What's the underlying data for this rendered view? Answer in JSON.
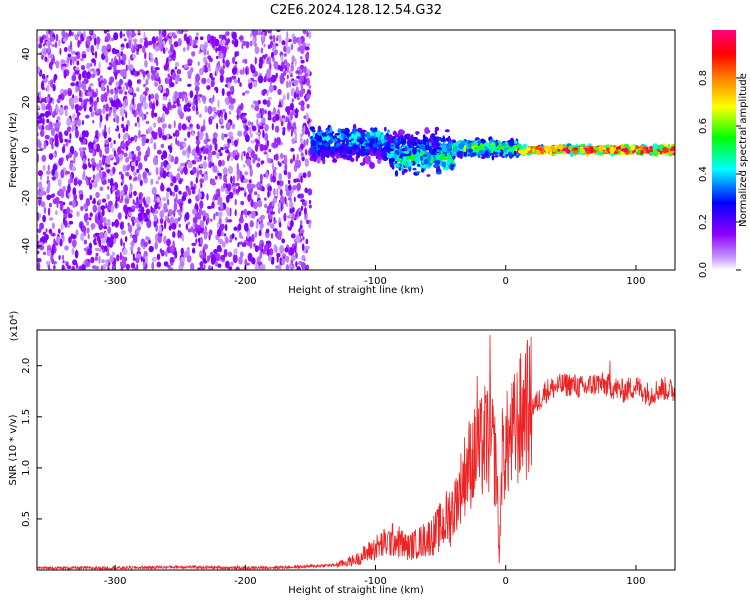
{
  "title": "C2E6.2024.128.12.54.G32",
  "chart_data": [
    {
      "type": "heatmap",
      "xlabel": "Height of straight line (km)",
      "ylabel": "Frequency (Hz)",
      "xlim": [
        -360,
        130
      ],
      "ylim": [
        -50,
        50
      ],
      "x_ticks": [
        -300,
        -200,
        -100,
        0,
        100
      ],
      "y_ticks": [
        -40,
        -20,
        0,
        20,
        40
      ],
      "colorbar": {
        "label": "Normalized spectral amplitude",
        "range": [
          0,
          1
        ],
        "ticks": [
          "0.0",
          "0.2",
          "0.4",
          "0.6",
          "0.8"
        ],
        "colormap": [
          "#ffffff",
          "#8f00ff",
          "#0000ff",
          "#00ffff",
          "#00ff00",
          "#ffff00",
          "#ff8000",
          "#ff0000",
          "#ff007f"
        ]
      },
      "regions": [
        {
          "x": [
            -360,
            -150
          ],
          "freq_spread": [
            -50,
            50
          ],
          "amplitude": 0.1,
          "description": "broadband noise"
        },
        {
          "x": [
            -150,
            -90
          ],
          "freq_center": 5,
          "freq_spread": [
            -8,
            12
          ],
          "amplitude": 0.35
        },
        {
          "x": [
            -90,
            -40
          ],
          "freq_center": -3,
          "freq_spread": [
            -12,
            10
          ],
          "amplitude": 0.4
        },
        {
          "x": [
            -40,
            10
          ],
          "freq_center": 1,
          "freq_spread": [
            -4,
            5
          ],
          "amplitude": 0.5
        },
        {
          "x": [
            10,
            130
          ],
          "freq_center": 0,
          "freq_spread": [
            -2,
            2
          ],
          "amplitude": 0.9
        }
      ]
    },
    {
      "type": "line",
      "xlabel": "Height of straight line (km)",
      "ylabel": "SNR (10 * v/v)",
      "y_multiplier": "(x10⁴)",
      "xlim": [
        -360,
        130
      ],
      "ylim": [
        0,
        2.35
      ],
      "x_ticks": [
        -300,
        -200,
        -100,
        0,
        100
      ],
      "y_ticks": [
        "0.5",
        "1.0",
        "1.5",
        "2.0"
      ],
      "color": "#ee2222",
      "series": [
        {
          "x": [
            -360,
            -300,
            -250,
            -200,
            -160,
            -130,
            -115,
            -105,
            -95,
            -85,
            -75,
            -65,
            -55,
            -48,
            -40,
            -35,
            -30,
            -25,
            -20,
            -15,
            -10,
            -7,
            -5,
            -3,
            0,
            5,
            10,
            15,
            20,
            25,
            30,
            40,
            50,
            60,
            70,
            80,
            90,
            100,
            110,
            120,
            130
          ],
          "y": [
            0.02,
            0.02,
            0.03,
            0.02,
            0.03,
            0.05,
            0.1,
            0.18,
            0.25,
            0.3,
            0.22,
            0.28,
            0.35,
            0.45,
            0.6,
            0.8,
            1.0,
            1.1,
            1.15,
            1.3,
            1.2,
            1.0,
            0.05,
            1.1,
            1.2,
            1.3,
            1.45,
            1.55,
            1.6,
            1.65,
            1.75,
            1.8,
            1.82,
            1.78,
            1.83,
            1.8,
            1.75,
            1.8,
            1.72,
            1.78,
            1.75
          ]
        }
      ],
      "spikes": [
        {
          "x": -12,
          "y": 2.3
        },
        {
          "x": -22,
          "y": 1.9
        },
        {
          "x": 15,
          "y": 1.9
        },
        {
          "x": 80,
          "y": 2.05
        }
      ]
    }
  ]
}
